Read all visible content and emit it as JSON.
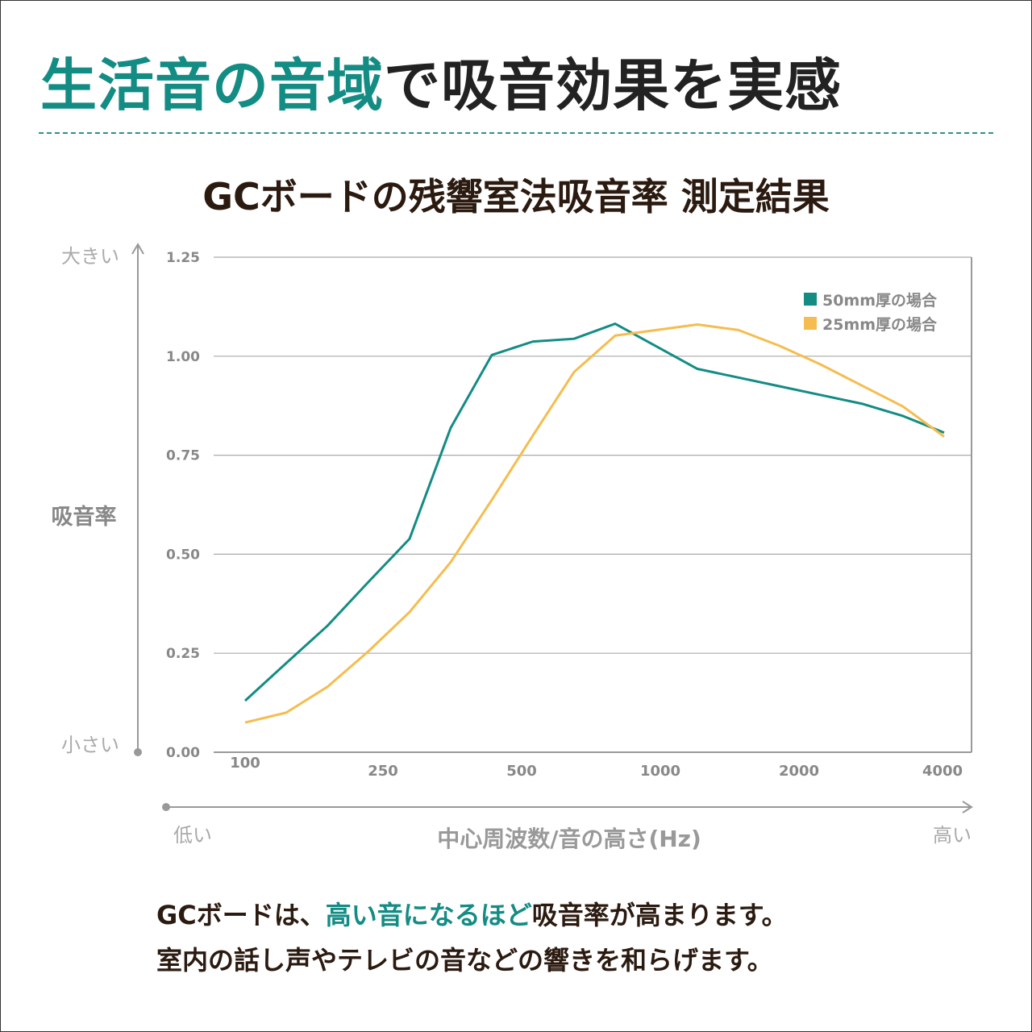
{
  "headline": {
    "accent": "生活音の音域",
    "rest": "で吸音効果を実感"
  },
  "subtitle": "GCボードの残響室法吸音率 測定結果",
  "y_axis": {
    "top_label": "大きい",
    "bottom_label": "小さい",
    "title": "吸音率"
  },
  "x_axis": {
    "left_label": "低い",
    "right_label": "高い",
    "title": "中心周波数/音の高さ(Hz)"
  },
  "notes": {
    "line1_a": "GCボードは、",
    "line1_accent": "高い音になるほど",
    "line1_b": "吸音率が高まります。",
    "line2": "室内の話し声やテレビの音などの響きを和らげます。"
  },
  "colors": {
    "accent": "#138c84",
    "series_50": "#138c84",
    "series_25": "#f5bd4f",
    "text_dark": "#2b1a10"
  },
  "chart_data": {
    "type": "line",
    "title": "GCボードの残響室法吸音率 測定結果",
    "xlabel": "中心周波数/音の高さ(Hz)",
    "ylabel": "吸音率",
    "x_tick_labels": [
      "100",
      "250",
      "500",
      "1000",
      "2000",
      "4000"
    ],
    "y_ticks": [
      "0.00",
      "0.25",
      "0.50",
      "0.75",
      "1.00",
      "1.25"
    ],
    "ylim": [
      0,
      1.25
    ],
    "grid": true,
    "legend": "top-right",
    "point_count": 18,
    "series": [
      {
        "name": "50mm厚の場合",
        "color": "#138c84",
        "values": [
          0.13,
          0.225,
          0.319,
          0.43,
          0.539,
          0.819,
          1.003,
          1.037,
          1.044,
          1.082,
          1.025,
          0.968,
          0.946,
          0.924,
          0.902,
          0.88,
          0.849,
          0.807
        ]
      },
      {
        "name": "25mm厚の場合",
        "color": "#f5bd4f",
        "values": [
          0.075,
          0.1,
          0.165,
          0.255,
          0.354,
          0.48,
          0.637,
          0.8,
          0.96,
          1.052,
          1.066,
          1.08,
          1.066,
          1.026,
          0.979,
          0.926,
          0.873,
          0.797
        ]
      }
    ]
  }
}
